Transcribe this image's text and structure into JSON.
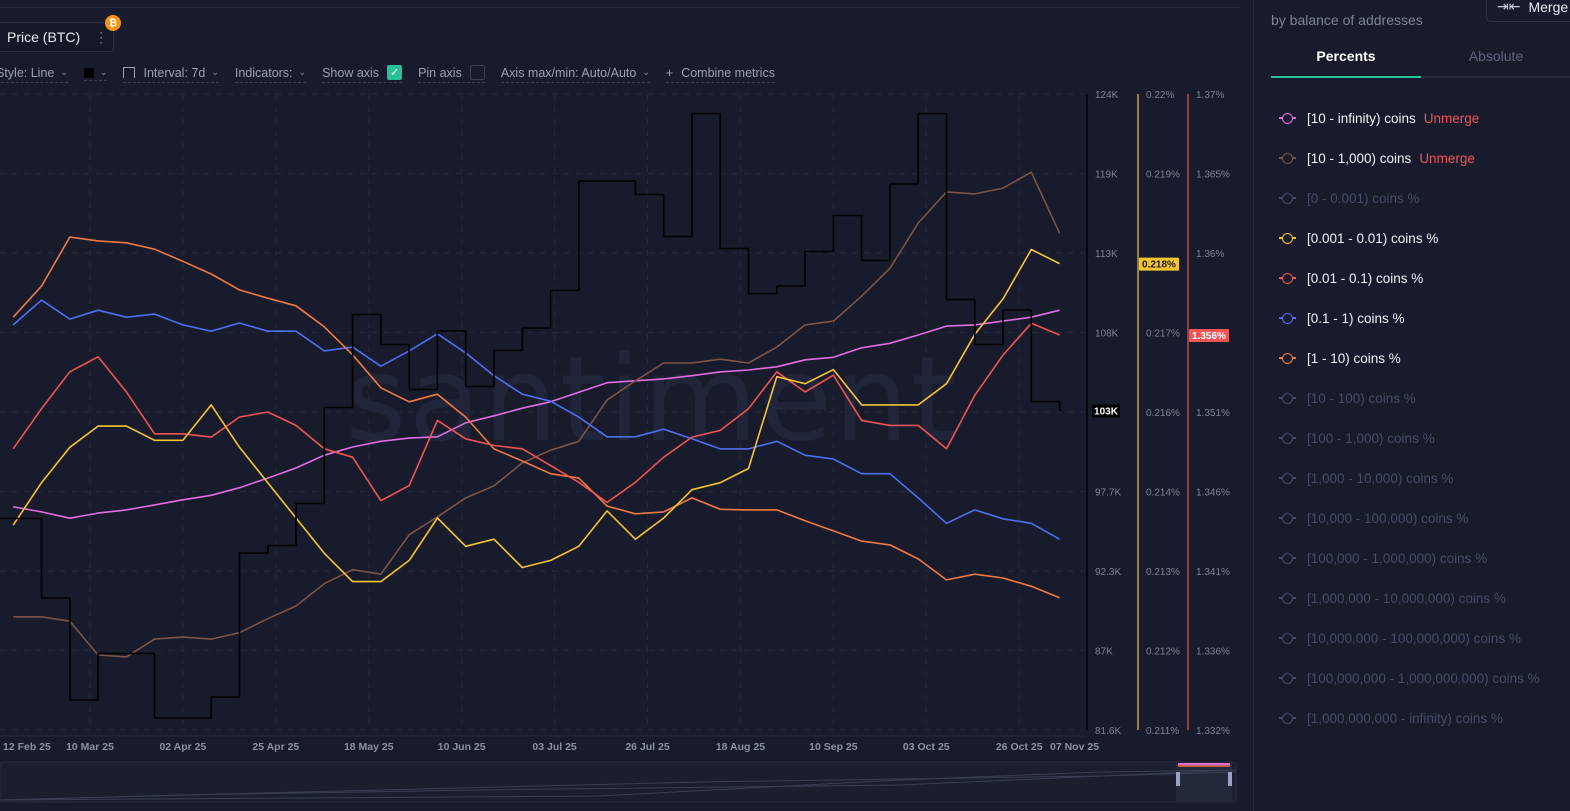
{
  "metric_chip": {
    "label": "Price (BTC)",
    "menu_icon": "more-vertical-icon",
    "badge_icon": "bitcoin-icon",
    "badge_glyph": "₿"
  },
  "toolbar": {
    "style": "Style: Line",
    "line_color": "#000000",
    "interval": "Interval: 7d",
    "indicators": "Indicators:",
    "show_axis": "Show axis",
    "show_axis_checked": true,
    "pin_axis": "Pin axis",
    "pin_axis_checked": false,
    "axis_maxmin": "Axis max/min: Auto/Auto",
    "combine": "Combine metrics",
    "combine_icon": "plus-icon"
  },
  "watermark": "santiment",
  "panel": {
    "subtitle": "by balance of addresses",
    "merge_label": "Merge",
    "tabs": [
      {
        "label": "Percents",
        "active": true
      },
      {
        "label": "Absolute",
        "active": false
      }
    ],
    "unmerge_label": "Unmerge",
    "legend": [
      {
        "label": "[10 - infinity) coins",
        "color": "#e06ee0",
        "active": true,
        "unmerge": true
      },
      {
        "label": "[10 - 1,000) coins",
        "color": "#7c5548",
        "active": true,
        "unmerge": true
      },
      {
        "label": "[0 - 0.001) coins %",
        "color": "#464d68",
        "active": false
      },
      {
        "label": "[0.001 - 0.01) coins %",
        "color": "#f5c531",
        "active": true
      },
      {
        "label": "[0.01 - 0.1) coins %",
        "color": "#f05454",
        "active": true
      },
      {
        "label": "[0.1 - 1) coins %",
        "color": "#4f6ff0",
        "active": true
      },
      {
        "label": "[1 - 10) coins %",
        "color": "#f07a45",
        "active": true
      },
      {
        "label": "[10 - 100) coins %",
        "color": "#464d68",
        "active": false
      },
      {
        "label": "[100 - 1,000) coins %",
        "color": "#464d68",
        "active": false
      },
      {
        "label": "[1,000 - 10,000) coins %",
        "color": "#464d68",
        "active": false
      },
      {
        "label": "[10,000 - 100,000) coins %",
        "color": "#464d68",
        "active": false
      },
      {
        "label": "[100,000 - 1,000,000) coins %",
        "color": "#464d68",
        "active": false
      },
      {
        "label": "[1,000,000 - 10,000,000) coins %",
        "color": "#464d68",
        "active": false
      },
      {
        "label": "[10,000,000 - 100,000,000) coins %",
        "color": "#464d68",
        "active": false
      },
      {
        "label": "[100,000,000 - 1,000,000,000) coins %",
        "color": "#464d68",
        "active": false
      },
      {
        "label": "[1,000,000,000 - infinity) coins %",
        "color": "#464d68",
        "active": false
      }
    ]
  },
  "chart_data": {
    "type": "line",
    "grid": true,
    "x_tick_labels": [
      "12 Feb 25",
      "10 Mar 25",
      "02 Apr 25",
      "25 Apr 25",
      "18 May 25",
      "10 Jun 25",
      "03 Jul 25",
      "26 Jul 25",
      "18 Aug 25",
      "10 Sep 25",
      "03 Oct 25",
      "26 Oct 25",
      "07 Nov 25"
    ],
    "x_tick_dates": [
      "2025-02-12",
      "2025-03-10",
      "2025-04-02",
      "2025-04-25",
      "2025-05-18",
      "2025-06-10",
      "2025-07-03",
      "2025-07-26",
      "2025-08-18",
      "2025-09-10",
      "2025-10-03",
      "2025-10-26",
      "2025-11-07"
    ],
    "dates": [
      "2025-02-19",
      "2025-02-26",
      "2025-03-05",
      "2025-03-12",
      "2025-03-19",
      "2025-03-26",
      "2025-04-02",
      "2025-04-09",
      "2025-04-16",
      "2025-04-23",
      "2025-04-30",
      "2025-05-07",
      "2025-05-14",
      "2025-05-21",
      "2025-05-28",
      "2025-06-04",
      "2025-06-11",
      "2025-06-18",
      "2025-06-25",
      "2025-07-02",
      "2025-07-09",
      "2025-07-16",
      "2025-07-23",
      "2025-07-30",
      "2025-08-06",
      "2025-08-13",
      "2025-08-20",
      "2025-08-27",
      "2025-09-03",
      "2025-09-10",
      "2025-09-17",
      "2025-09-24",
      "2025-10-01",
      "2025-10-08",
      "2025-10-15",
      "2025-10-22",
      "2025-10-29",
      "2025-11-05"
    ],
    "axes": [
      {
        "id": "price",
        "color": "#000000",
        "range": [
          81.6,
          124
        ],
        "tick_labels": [
          "124K",
          "119K",
          "113K",
          "108K",
          "103K",
          "97.7K",
          "92.3K",
          "87K",
          "81.6K"
        ],
        "last_value_label": "103K",
        "last_value_label_color": "#000000"
      },
      {
        "id": "pct_small",
        "color": "#c9a12e",
        "range": [
          0.211,
          0.22
        ],
        "tick_labels": [
          "0.22%",
          "0.219%",
          "0.218%",
          "0.217%",
          "0.216%",
          "0.214%",
          "0.213%",
          "0.212%",
          "0.211%"
        ],
        "last_value_label": "0.218%",
        "last_value_label_color": "#f5c531"
      },
      {
        "id": "pct_red",
        "color": "#c0474c",
        "range": [
          1.332,
          1.37
        ],
        "tick_labels": [
          "1.37%",
          "1.365%",
          "1.36%",
          "1.356%",
          "1.351%",
          "1.346%",
          "1.341%",
          "1.336%",
          "1.332%"
        ],
        "last_value_label": "1.356%",
        "last_value_label_color": "#f05454"
      }
    ],
    "series": [
      {
        "name": "Price (BTC)",
        "axis": "price",
        "color": "#000000",
        "step": true,
        "values": [
          95.7,
          90.4,
          83.6,
          86.7,
          86.7,
          82.4,
          82.4,
          83.8,
          93.4,
          93.9,
          96.7,
          103.1,
          109.3,
          107.3,
          104.3,
          108.2,
          104.5,
          106.9,
          108.4,
          110.9,
          118.2,
          118.2,
          117.3,
          114.5,
          122.7,
          113.7,
          110.7,
          111.2,
          113.5,
          115.9,
          112.9,
          118.0,
          122.7,
          110.3,
          107.3,
          109.6,
          103.5,
          102.9
        ]
      },
      {
        "name": "[10 - infinity) coins",
        "axis": "hidden",
        "hidden_range": [
          0,
          100
        ],
        "color": "#e06ee0",
        "values": [
          35.1,
          34.3,
          33.3,
          34.1,
          34.6,
          35.4,
          36.2,
          36.9,
          38.1,
          39.6,
          41.2,
          43.2,
          44.5,
          45.4,
          45.9,
          46.1,
          48.3,
          49.4,
          50.6,
          51.6,
          53.1,
          54.6,
          54.9,
          55.2,
          55.7,
          56.3,
          56.6,
          57.1,
          58.2,
          58.6,
          60.1,
          60.8,
          62.1,
          63.5,
          63.7,
          64.3,
          64.9,
          66.0
        ]
      },
      {
        "name": "[10 - 1,000) coins",
        "axis": "hidden",
        "hidden_range": [
          0,
          100
        ],
        "color": "#7c5548",
        "values": [
          17.8,
          17.8,
          17.1,
          11.8,
          11.5,
          14.3,
          14.6,
          14.3,
          15.3,
          17.5,
          19.5,
          23.0,
          25.2,
          24.5,
          30.7,
          33.5,
          36.5,
          38.4,
          42.0,
          44.0,
          45.4,
          51.9,
          54.9,
          57.7,
          57.7,
          58.3,
          57.7,
          60.2,
          63.7,
          64.3,
          68.2,
          72.6,
          79.7,
          84.6,
          84.3,
          85.2,
          87.7,
          78.1
        ]
      },
      {
        "name": "[0.001 - 0.01) coins %",
        "axis": "pct_small",
        "color": "#f5c531",
        "values": [
          0.2139,
          0.2145,
          0.215,
          0.2153,
          0.2153,
          0.2151,
          0.2151,
          0.2156,
          0.215,
          0.2145,
          0.214,
          0.2135,
          0.2131,
          0.2131,
          0.2134,
          0.214,
          0.2136,
          0.2137,
          0.2133,
          0.2134,
          0.2136,
          0.2141,
          0.2137,
          0.214,
          0.2144,
          0.2145,
          0.2147,
          0.216,
          0.2159,
          0.2161,
          0.2156,
          0.2156,
          0.2156,
          0.2159,
          0.2166,
          0.2171,
          0.2178,
          0.2176
        ]
      },
      {
        "name": "[0.01 - 0.1) coins %",
        "axis": "pct_red",
        "color": "#f05454",
        "values": [
          1.3488,
          1.3512,
          1.3534,
          1.3543,
          1.3522,
          1.3497,
          1.3497,
          1.3495,
          1.3507,
          1.351,
          1.3502,
          1.3488,
          1.3483,
          1.3457,
          1.3466,
          1.3505,
          1.3494,
          1.349,
          1.3488,
          1.3478,
          1.3468,
          1.3456,
          1.3468,
          1.3483,
          1.3495,
          1.3499,
          1.3512,
          1.3534,
          1.3522,
          1.3532,
          1.3505,
          1.3502,
          1.3502,
          1.3488,
          1.352,
          1.3544,
          1.3563,
          1.3556
        ]
      },
      {
        "name": "[0.1 - 1) coins %",
        "axis": "hidden",
        "hidden_range": [
          0,
          100
        ],
        "color": "#4f6ff0",
        "values": [
          63.7,
          67.6,
          64.6,
          66.0,
          64.9,
          65.4,
          63.7,
          62.7,
          64.0,
          62.7,
          62.7,
          59.6,
          60.2,
          57.2,
          59.6,
          62.3,
          59.3,
          55.7,
          52.8,
          51.7,
          49.2,
          46.1,
          46.1,
          47.3,
          45.8,
          44.2,
          44.2,
          45.4,
          43.2,
          42.6,
          40.3,
          40.3,
          36.5,
          32.5,
          34.6,
          33.2,
          32.5,
          30.0
        ]
      },
      {
        "name": "[1 - 10) coins %",
        "axis": "hidden",
        "hidden_range": [
          0,
          100
        ],
        "color": "#f07a45",
        "values": [
          64.9,
          69.8,
          77.5,
          76.9,
          76.6,
          75.6,
          73.7,
          71.7,
          69.2,
          67.9,
          66.7,
          63.4,
          59.0,
          53.8,
          51.6,
          52.8,
          49.2,
          44.2,
          42.3,
          40.3,
          39.6,
          35.2,
          34.0,
          34.3,
          36.5,
          34.7,
          34.6,
          34.6,
          32.9,
          31.3,
          29.7,
          29.1,
          26.9,
          23.6,
          24.5,
          23.9,
          22.6,
          20.8
        ]
      }
    ]
  }
}
